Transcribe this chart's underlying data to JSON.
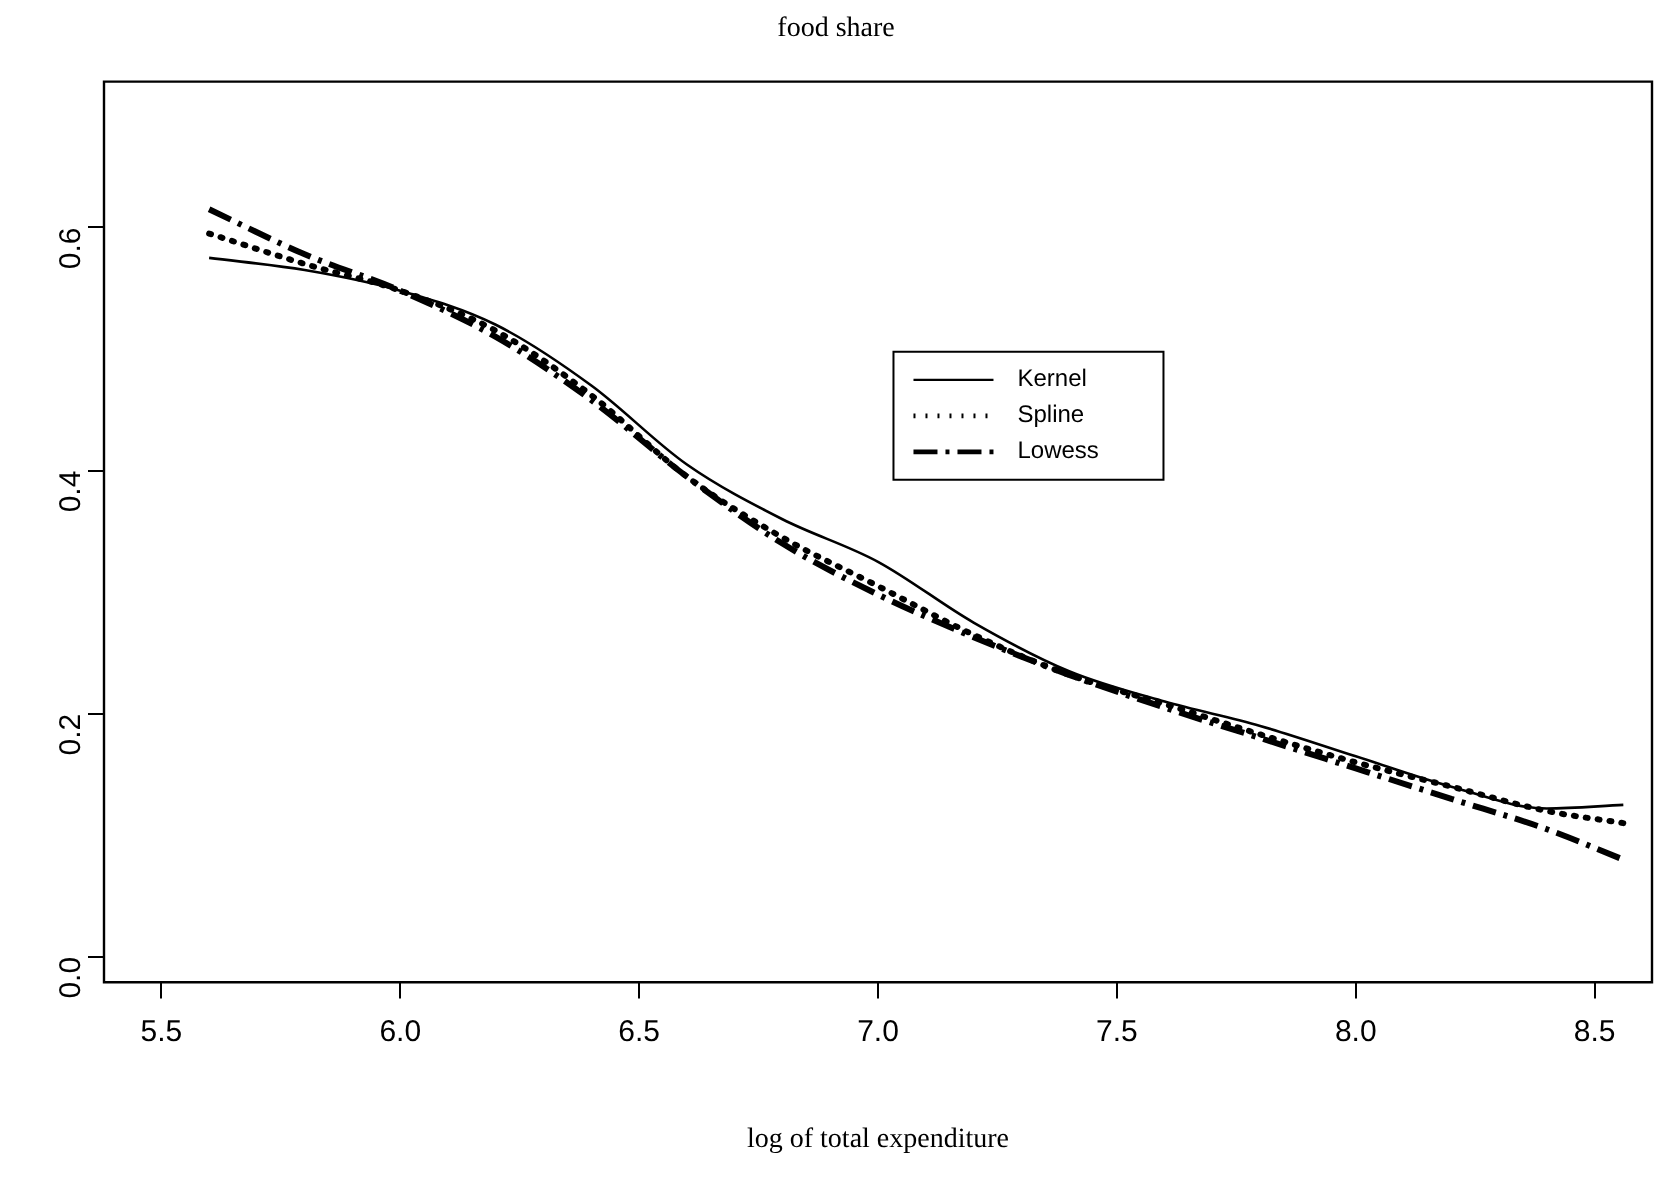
{
  "chart_data": {
    "type": "line",
    "title": "food share",
    "xlabel": "log of total expenditure",
    "xlim": [
      5.38,
      8.62
    ],
    "xticks": [
      {
        "value": 5.5,
        "label": "5.5"
      },
      {
        "value": 6,
        "label": "6.0"
      },
      {
        "value": 6.5,
        "label": "6.5"
      },
      {
        "value": 7,
        "label": "7.0"
      },
      {
        "value": 7.5,
        "label": "7.5"
      },
      {
        "value": 8,
        "label": "8.0"
      },
      {
        "value": 8.5,
        "label": "8.5"
      }
    ],
    "ylim": [
      -0.021,
      0.72
    ],
    "yticks": [
      {
        "value": 0,
        "label": "0.0"
      },
      {
        "value": 0.2,
        "label": "0.2"
      },
      {
        "value": 0.4,
        "label": "0.4"
      },
      {
        "value": 0.6,
        "label": "0.6"
      }
    ],
    "grid": false,
    "legend": "center",
    "marker": "none",
    "x": [
      5.6,
      5.8,
      6.0,
      6.2,
      6.4,
      6.6,
      6.8,
      7.0,
      7.2,
      7.4,
      7.6,
      7.8,
      8.0,
      8.2,
      8.4,
      8.56
    ],
    "series": [
      {
        "name": "Kernel",
        "color": "#000000",
        "line_style": "solid",
        "values": [
          0.575,
          0.565,
          0.548,
          0.52,
          0.47,
          0.405,
          0.36,
          0.325,
          0.275,
          0.235,
          0.21,
          0.19,
          0.165,
          0.14,
          0.122,
          0.125
        ]
      },
      {
        "name": "Spline",
        "color": "#000000",
        "line_style": "dotted",
        "values": [
          0.595,
          0.57,
          0.548,
          0.515,
          0.462,
          0.395,
          0.345,
          0.305,
          0.265,
          0.232,
          0.208,
          0.183,
          0.16,
          0.14,
          0.12,
          0.11
        ]
      },
      {
        "name": "Lowess",
        "color": "#000000",
        "line_style": "dashed",
        "values": [
          0.615,
          0.578,
          0.548,
          0.51,
          0.458,
          0.395,
          0.34,
          0.298,
          0.263,
          0.232,
          0.205,
          0.18,
          0.155,
          0.13,
          0.105,
          0.08
        ]
      }
    ]
  }
}
